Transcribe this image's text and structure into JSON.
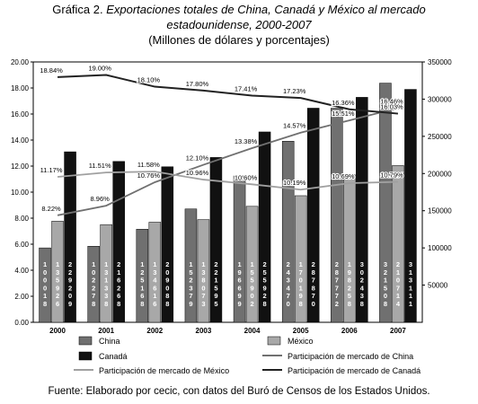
{
  "title": {
    "prefix": "Gráfica 2. ",
    "line1_italic": "Exportaciones totales de China, Canadá y México al mercado",
    "line2_italic": "estadounidense, 2000-2007",
    "subtitle": "(Millones de dólares y porcentajes)"
  },
  "source": "Fuente: Elaborado por cecic, con datos del Buró de Censos de los Estados Unidos.",
  "colors": {
    "china": "#707070",
    "mexico": "#a8a8a8",
    "canada": "#111111",
    "share_china": "#707070",
    "share_mexico": "#a0a0a0",
    "share_canada": "#222222"
  },
  "chart_data": {
    "type": "bar",
    "categories": [
      "2000",
      "2001",
      "2002",
      "2003",
      "2004",
      "2005",
      "2006",
      "2007"
    ],
    "series": [
      {
        "name": "China",
        "kind": "bar",
        "axis": "right",
        "values": [
          100018,
          102278,
          125168,
          152379,
          196699,
          243470,
          287772,
          321508
        ],
        "labels": [
          "100018",
          "102278",
          "125168",
          "152379",
          "196699",
          "243470",
          "287772",
          "321508"
        ]
      },
      {
        "name": "México",
        "kind": "bar",
        "axis": "right",
        "values": [
          135926,
          131338,
          134616,
          138073,
          155902,
          170198,
          198258,
          210714
        ],
        "labels": [
          "135926",
          "131338",
          "134616",
          "138073",
          "155902",
          "170198",
          "198258",
          "210714"
        ]
      },
      {
        "name": "Canadá",
        "kind": "bar",
        "axis": "right",
        "values": [
          229209,
          216268,
          209088,
          221595,
          255928,
          287870,
          302438,
          313111
        ],
        "labels": [
          "229209",
          "216268",
          "209088",
          "221595",
          "255928",
          "287870",
          "302438",
          "313111"
        ]
      },
      {
        "name": "Participación de mercado de China",
        "kind": "line",
        "axis": "left",
        "values": [
          8.22,
          8.96,
          10.76,
          12.1,
          13.38,
          14.57,
          15.51,
          16.46
        ],
        "labels": [
          "8.22%",
          "8.96%",
          "10.76%",
          "12.10%",
          "13.38%",
          "14.57%",
          "15.51%",
          "16.46%"
        ]
      },
      {
        "name": "Participación de mercado de México",
        "kind": "line",
        "axis": "left",
        "values": [
          11.17,
          11.51,
          11.58,
          10.96,
          10.6,
          10.19,
          10.69,
          10.79
        ],
        "labels": [
          "11.17%",
          "11.51%",
          "11.58%",
          "10.96%",
          "10.60%",
          "10.19%",
          "10.69%",
          "10.79%"
        ]
      },
      {
        "name": "Participación de mercado de Canadá",
        "kind": "line",
        "axis": "left",
        "values": [
          18.84,
          19.0,
          18.1,
          17.8,
          17.41,
          17.23,
          16.36,
          16.03
        ],
        "labels": [
          "18.84%",
          "19.00%",
          "18.10%",
          "17.80%",
          "17.41%",
          "17.23%",
          "16.36%",
          "16.03%"
        ]
      }
    ],
    "y_left": {
      "ylim": [
        0,
        20
      ],
      "ticks": [
        "0.00",
        "2.00",
        "4.00",
        "6.00",
        "8.00",
        "10.00",
        "12.00",
        "14.00",
        "16.00",
        "18.00",
        "20.00"
      ]
    },
    "y_right": {
      "ylim": [
        0,
        350000
      ],
      "ticks": [
        "50000",
        "100000",
        "150000",
        "200000",
        "250000",
        "300000",
        "350000"
      ]
    },
    "legend": {
      "position": "bottom",
      "entries": [
        "China",
        "México",
        "Canadá",
        "Participación de mercado de China",
        "Participación de mercado de México",
        "Participación de mercado de Canadá"
      ]
    },
    "grid": false
  }
}
